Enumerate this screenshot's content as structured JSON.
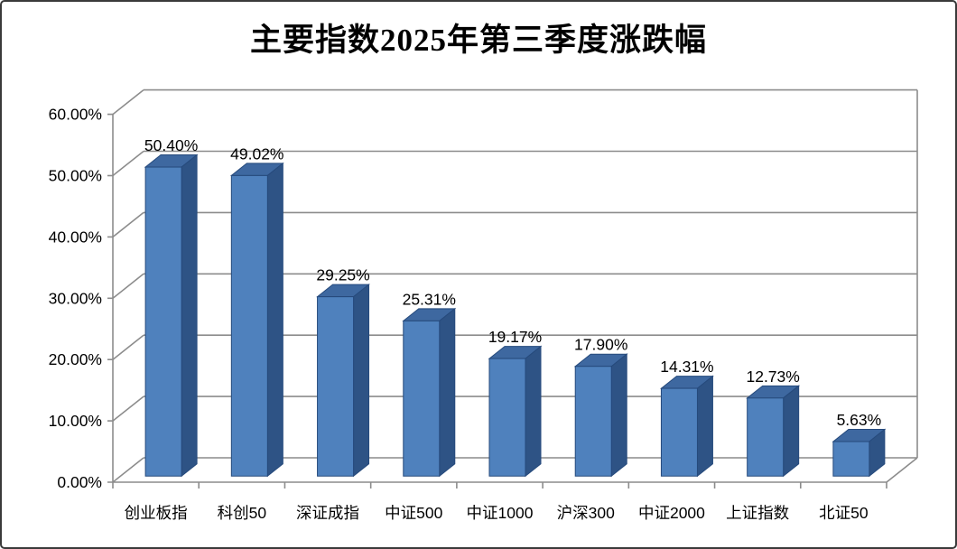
{
  "window": {
    "background": "#ffffff",
    "frame_border_color": "#3a3a3a"
  },
  "chart_data": {
    "type": "bar",
    "style": "3d-clustered-column",
    "title": "主要指数2025年第三季度涨跌幅",
    "categories": [
      "创业板指",
      "科创50",
      "深证成指",
      "中证500",
      "中证1000",
      "沪深300",
      "中证2000",
      "上证指数",
      "北证50"
    ],
    "series": [
      {
        "name": "涨跌幅",
        "values": [
          50.4,
          49.02,
          29.25,
          25.31,
          19.17,
          17.9,
          14.31,
          12.73,
          5.63
        ],
        "data_labels": [
          "50.40%",
          "49.02%",
          "29.25%",
          "25.31%",
          "19.17%",
          "17.90%",
          "14.31%",
          "12.73%",
          "5.63%"
        ]
      }
    ],
    "xlabel": "",
    "ylabel": "",
    "ylim": [
      0,
      60
    ],
    "ytick_step": 10,
    "ytick_labels": [
      "0.00%",
      "10.00%",
      "20.00%",
      "30.00%",
      "40.00%",
      "50.00%",
      "60.00%"
    ],
    "grid": true,
    "legend": "none",
    "colors": {
      "bar_front": "#4f81bd",
      "bar_top": "#3e68a0",
      "bar_side": "#2e5385",
      "bar_edge": "#264a7c",
      "gridline": "#8c8c8c",
      "text": "#000000"
    }
  }
}
